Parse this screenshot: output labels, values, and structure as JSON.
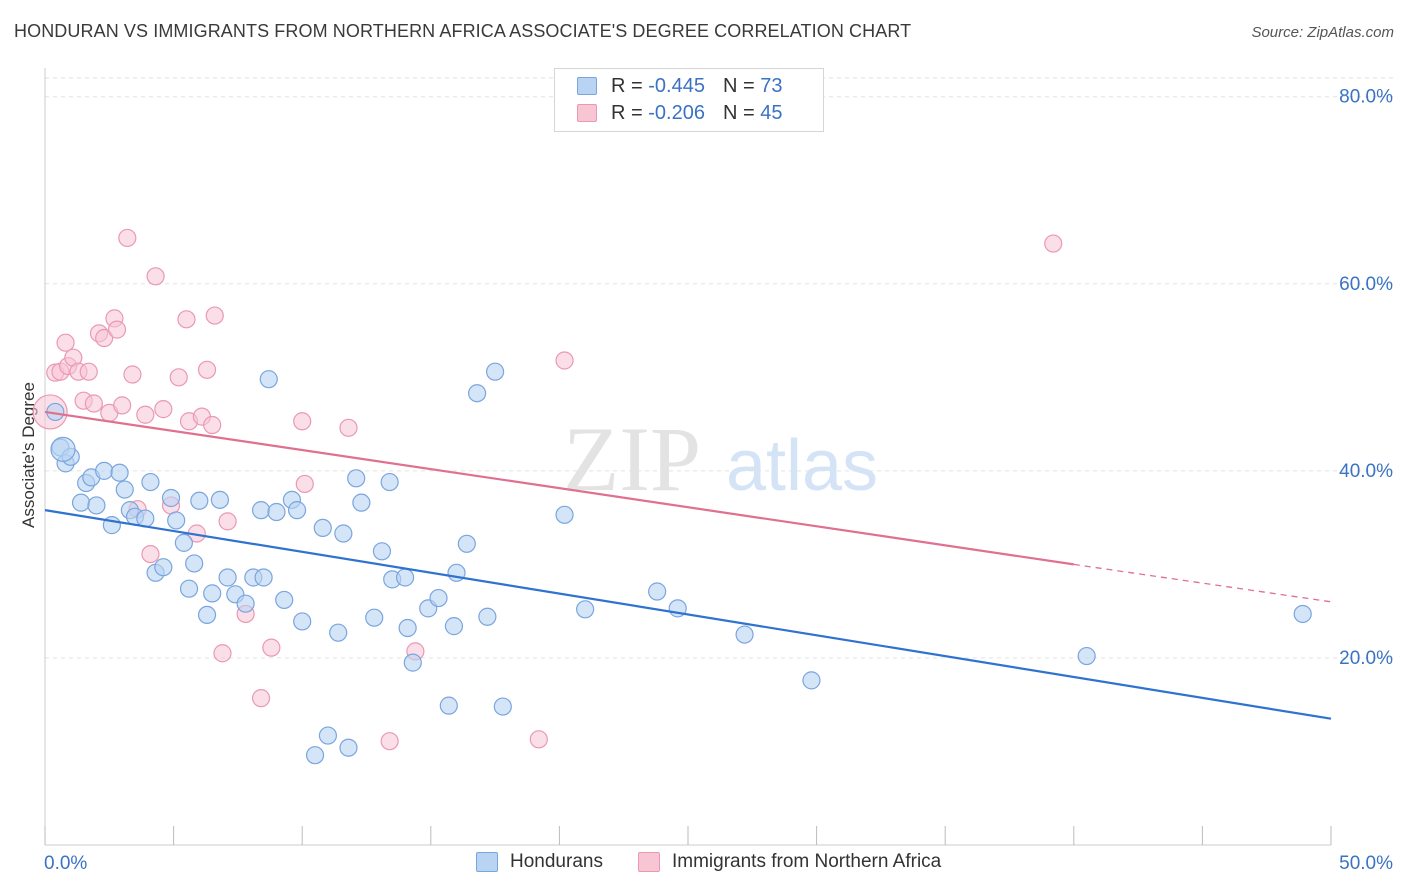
{
  "header": {
    "title": "HONDURAN VS IMMIGRANTS FROM NORTHERN AFRICA ASSOCIATE'S DEGREE CORRELATION CHART",
    "source": "Source: ZipAtlas.com"
  },
  "watermark": {
    "zip": "ZIP",
    "atlas": "atlas"
  },
  "legend": {
    "rows": [
      {
        "r_label": "R =",
        "r_value": "-0.445",
        "n_label": "N =",
        "n_value": "73"
      },
      {
        "r_label": "R =",
        "r_value": "-0.206",
        "n_label": "N =",
        "n_value": "45"
      }
    ]
  },
  "colors": {
    "blue_fill": "#b9d3f3",
    "blue_stroke": "#7aa5de",
    "blue_line": "#2f72cf",
    "pink_fill": "#f8c5d5",
    "pink_stroke": "#eb98b3",
    "pink_line": "#e0708f",
    "axis_text": "#3a72c4",
    "grid": "#e2e2e2"
  },
  "chart_data": {
    "type": "scatter",
    "title": "HONDURAN VS IMMIGRANTS FROM NORTHERN AFRICA ASSOCIATE'S DEGREE CORRELATION CHART",
    "xlabel": "",
    "ylabel": "Associate's Degree",
    "xlim": [
      0,
      50
    ],
    "ylim": [
      0,
      82
    ],
    "x_tick_labels": [
      "0.0%",
      "50.0%"
    ],
    "y_ticks": [
      20,
      40,
      60,
      80
    ],
    "y_tick_labels": [
      "20.0%",
      "40.0%",
      "60.0%",
      "80.0%"
    ],
    "grid": true,
    "legend_placement": "top-center",
    "series": [
      {
        "name": "Hondurans",
        "r": -0.445,
        "n": 73,
        "trend": {
          "x0": 0,
          "y0": 35.8,
          "x1": 50,
          "y1": 13.5
        },
        "points": [
          [
            0.4,
            46.3
          ],
          [
            0.6,
            42.5
          ],
          [
            0.8,
            40.8
          ],
          [
            1.0,
            41.5
          ],
          [
            1.4,
            36.6
          ],
          [
            1.6,
            38.7
          ],
          [
            1.8,
            39.3
          ],
          [
            2.0,
            36.3
          ],
          [
            2.3,
            40.0
          ],
          [
            2.6,
            34.2
          ],
          [
            2.9,
            39.8
          ],
          [
            3.1,
            38.0
          ],
          [
            3.3,
            35.8
          ],
          [
            3.5,
            35.1
          ],
          [
            3.9,
            34.9
          ],
          [
            4.1,
            38.8
          ],
          [
            4.3,
            29.1
          ],
          [
            4.6,
            29.7
          ],
          [
            4.9,
            37.1
          ],
          [
            5.1,
            34.7
          ],
          [
            5.4,
            32.3
          ],
          [
            5.6,
            27.4
          ],
          [
            5.8,
            30.1
          ],
          [
            6.0,
            36.8
          ],
          [
            6.3,
            24.6
          ],
          [
            6.5,
            26.9
          ],
          [
            6.8,
            36.9
          ],
          [
            7.1,
            28.6
          ],
          [
            7.4,
            26.8
          ],
          [
            7.8,
            25.8
          ],
          [
            8.1,
            28.6
          ],
          [
            8.4,
            35.8
          ],
          [
            8.5,
            28.6
          ],
          [
            8.7,
            49.8
          ],
          [
            9.0,
            35.6
          ],
          [
            9.3,
            26.2
          ],
          [
            9.6,
            36.9
          ],
          [
            9.8,
            35.8
          ],
          [
            10.0,
            23.9
          ],
          [
            10.5,
            9.6
          ],
          [
            10.8,
            33.9
          ],
          [
            11.0,
            11.7
          ],
          [
            11.4,
            22.7
          ],
          [
            11.6,
            33.3
          ],
          [
            11.8,
            10.4
          ],
          [
            12.1,
            39.2
          ],
          [
            12.3,
            36.6
          ],
          [
            12.8,
            24.3
          ],
          [
            13.1,
            31.4
          ],
          [
            13.4,
            38.8
          ],
          [
            13.5,
            28.4
          ],
          [
            14.0,
            28.6
          ],
          [
            14.1,
            23.2
          ],
          [
            14.3,
            19.5
          ],
          [
            14.9,
            25.3
          ],
          [
            15.3,
            26.4
          ],
          [
            15.7,
            14.9
          ],
          [
            15.9,
            23.4
          ],
          [
            16.0,
            29.1
          ],
          [
            16.4,
            32.2
          ],
          [
            16.8,
            48.3
          ],
          [
            17.2,
            24.4
          ],
          [
            17.5,
            50.6
          ],
          [
            17.8,
            14.8
          ],
          [
            20.2,
            35.3
          ],
          [
            21.0,
            25.2
          ],
          [
            23.8,
            27.1
          ],
          [
            24.6,
            25.3
          ],
          [
            27.2,
            22.5
          ],
          [
            29.8,
            17.6
          ],
          [
            40.5,
            20.2
          ],
          [
            48.9,
            24.7
          ],
          [
            0.7,
            42.3
          ]
        ]
      },
      {
        "name": "Immigrants from Northern Africa",
        "r": -0.206,
        "n": 45,
        "trend": {
          "x0": 0,
          "y0": 46.3,
          "x1": 40.0,
          "y1": 30.0,
          "dash_to": {
            "x": 50,
            "y": 26.0
          }
        },
        "points": [
          [
            0.2,
            46.3
          ],
          [
            0.4,
            50.5
          ],
          [
            0.6,
            50.6
          ],
          [
            0.8,
            53.7
          ],
          [
            0.9,
            51.2
          ],
          [
            1.1,
            52.1
          ],
          [
            1.3,
            50.6
          ],
          [
            1.5,
            47.5
          ],
          [
            1.7,
            50.6
          ],
          [
            1.9,
            47.2
          ],
          [
            2.1,
            54.7
          ],
          [
            2.3,
            54.2
          ],
          [
            2.5,
            46.2
          ],
          [
            2.7,
            56.3
          ],
          [
            2.8,
            55.1
          ],
          [
            3.0,
            47.0
          ],
          [
            3.2,
            64.9
          ],
          [
            3.4,
            50.3
          ],
          [
            3.6,
            35.9
          ],
          [
            3.9,
            46.0
          ],
          [
            4.1,
            31.1
          ],
          [
            4.3,
            60.8
          ],
          [
            4.6,
            46.6
          ],
          [
            4.9,
            36.3
          ],
          [
            5.2,
            50.0
          ],
          [
            5.5,
            56.2
          ],
          [
            5.6,
            45.3
          ],
          [
            5.9,
            33.3
          ],
          [
            6.1,
            45.8
          ],
          [
            6.3,
            50.8
          ],
          [
            6.5,
            44.9
          ],
          [
            6.6,
            56.6
          ],
          [
            6.9,
            20.5
          ],
          [
            7.1,
            34.6
          ],
          [
            7.8,
            24.7
          ],
          [
            8.4,
            15.7
          ],
          [
            8.8,
            21.1
          ],
          [
            10.0,
            45.3
          ],
          [
            10.1,
            38.6
          ],
          [
            11.8,
            44.6
          ],
          [
            13.4,
            11.1
          ],
          [
            14.4,
            20.7
          ],
          [
            19.2,
            11.3
          ],
          [
            20.2,
            51.8
          ],
          [
            39.2,
            64.3
          ]
        ]
      }
    ]
  },
  "bottom_legend": {
    "items": [
      {
        "label": "Hondurans"
      },
      {
        "label": "Immigrants from Northern Africa"
      }
    ]
  }
}
